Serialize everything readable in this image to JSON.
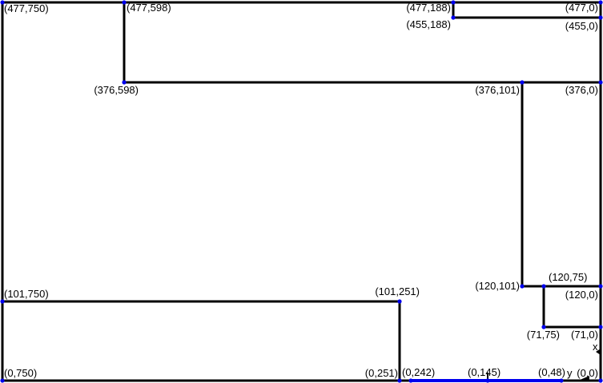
{
  "colors": {
    "wall": "#000000",
    "highlight": "#0000ee",
    "point": "#0000ee",
    "background": "#ffffff"
  },
  "axes": {
    "x_label": "x",
    "y_label": "y"
  },
  "points": [
    {
      "id": "p477_750",
      "label": "(477,750)"
    },
    {
      "id": "p477_598",
      "label": "(477,598)"
    },
    {
      "id": "p477_188",
      "label": "(477,188)"
    },
    {
      "id": "p477_0",
      "label": "(477,0)"
    },
    {
      "id": "p455_188",
      "label": "(455,188)"
    },
    {
      "id": "p455_0",
      "label": "(455,0)"
    },
    {
      "id": "p376_598",
      "label": "(376,598)"
    },
    {
      "id": "p376_101",
      "label": "(376,101)"
    },
    {
      "id": "p376_0",
      "label": "(376,0)"
    },
    {
      "id": "p101_750",
      "label": "(101,750)"
    },
    {
      "id": "p101_251",
      "label": "(101,251)"
    },
    {
      "id": "p120_101",
      "label": "(120,101)"
    },
    {
      "id": "p120_75",
      "label": "(120,75)"
    },
    {
      "id": "p120_0",
      "label": "(120,0)"
    },
    {
      "id": "p71_75",
      "label": "(71,75)"
    },
    {
      "id": "p71_0",
      "label": "(71,0)"
    },
    {
      "id": "p0_750",
      "label": "(0,750)"
    },
    {
      "id": "p0_251",
      "label": "(0,251)"
    },
    {
      "id": "p0_242",
      "label": "(0,242)"
    },
    {
      "id": "p0_145",
      "label": "(0,145)"
    },
    {
      "id": "p0_48",
      "label": "(0,48)"
    },
    {
      "id": "p0_0",
      "label": "(0,0)"
    }
  ]
}
